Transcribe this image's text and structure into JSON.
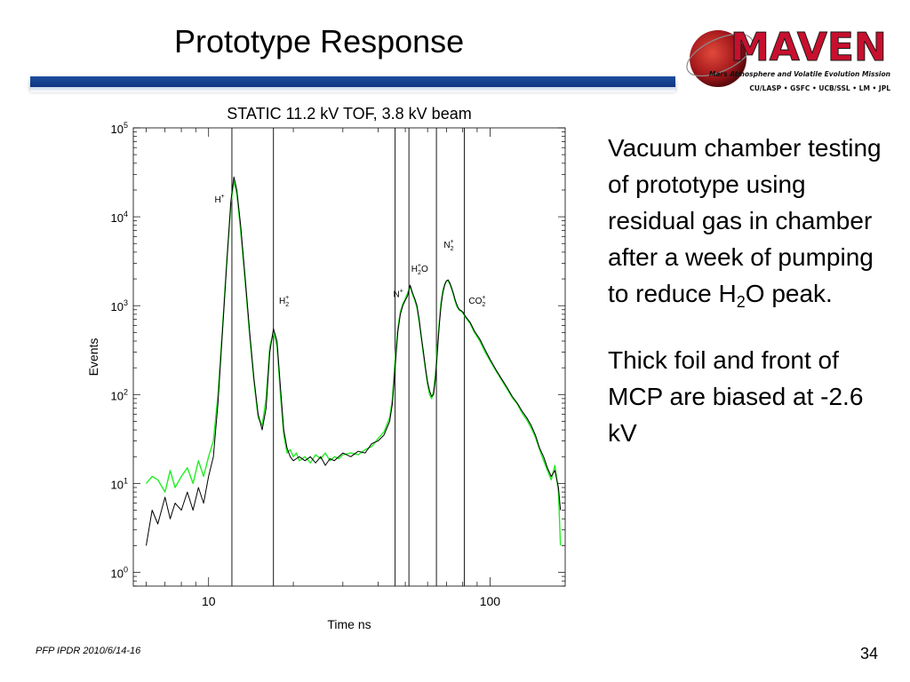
{
  "slide": {
    "title": "Prototype Response",
    "footer": "PFP IPDR 2010/6/14-16",
    "page_number": "34",
    "accent_color": "#0d3a8c"
  },
  "logo": {
    "text": "MAVEN",
    "subtitle": "Mars Atmosphere and Volatile Evolution Mission",
    "partners": "CU/LASP • GSFC • UCB/SSL • LM • JPL",
    "color": "#c8102e"
  },
  "body": {
    "paragraph1_main": "Vacuum chamber testing of prototype using residual gas in chamber after a week of pumping to reduce H",
    "paragraph1_sub": "2",
    "paragraph1_tail": "O peak.",
    "paragraph2": "Thick foil and front of MCP are biased at -2.6 kV"
  },
  "chart_data": {
    "type": "line",
    "title": "STATIC  11.2 kV TOF, 3.8 kV beam",
    "xlabel": "Time ns",
    "ylabel": "Events",
    "xscale": "log",
    "yscale": "log",
    "xlim": [
      5.4,
      185
    ],
    "ylim": [
      0.7,
      100000
    ],
    "x_ticks": [
      10,
      100
    ],
    "y_ticks": [
      {
        "value": 1,
        "label": "10",
        "exp": "0"
      },
      {
        "value": 10,
        "label": "10",
        "exp": "1"
      },
      {
        "value": 100,
        "label": "10",
        "exp": "2"
      },
      {
        "value": 1000,
        "label": "10",
        "exp": "3"
      },
      {
        "value": 10000,
        "label": "10",
        "exp": "4"
      },
      {
        "value": 100000,
        "label": "10",
        "exp": "5"
      }
    ],
    "vertical_lines": [
      12.1,
      17.0,
      46.0,
      51.5,
      64.5,
      81.0
    ],
    "peak_labels": [
      {
        "text": "H",
        "sup": "+",
        "sub": "",
        "x": 10.5,
        "y": 14500
      },
      {
        "text": "H",
        "sup": "+",
        "sub": "2",
        "x": 17.8,
        "y": 1050
      },
      {
        "text": "N",
        "sup": "+",
        "sub": "",
        "x": 45.3,
        "y": 1250
      },
      {
        "text": "H",
        "sup": "+",
        "sub": "2",
        "tail": "O",
        "x": 52.5,
        "y": 2400
      },
      {
        "text": "N",
        "sup": "+",
        "sub": "2",
        "x": 68.5,
        "y": 4500
      },
      {
        "text": "CO",
        "sup": "+",
        "sub": "2",
        "x": 84,
        "y": 1050
      }
    ],
    "series": [
      {
        "color": "#000000",
        "x": [
          6,
          6.3,
          6.6,
          7,
          7.3,
          7.6,
          8,
          8.4,
          8.8,
          9.2,
          9.6,
          10,
          10.4,
          10.8,
          11.2,
          11.6,
          12,
          12.3,
          12.6,
          13,
          13.5,
          14,
          14.5,
          15,
          15.5,
          16,
          16.5,
          17,
          17.5,
          18,
          18.5,
          19,
          19.5,
          20,
          20.5,
          21,
          22,
          23,
          24,
          25,
          26,
          27,
          28,
          29,
          30,
          32,
          34,
          36,
          38,
          40,
          42,
          44,
          45,
          46,
          47,
          48,
          49,
          50,
          51,
          52,
          53,
          54,
          55,
          56,
          57,
          58,
          59,
          60,
          61,
          62,
          63,
          64,
          65,
          66,
          67,
          68,
          69,
          70,
          71,
          72,
          73,
          74,
          75,
          76,
          77,
          78,
          79,
          80,
          82,
          85,
          88,
          92,
          96,
          100,
          105,
          110,
          115,
          120,
          125,
          130,
          135,
          140,
          145,
          150,
          155,
          160,
          165,
          170,
          175,
          178
        ],
        "y": [
          2,
          5,
          3.5,
          7,
          4,
          6,
          5,
          8,
          5,
          9,
          6,
          12,
          20,
          80,
          500,
          3000,
          15000,
          28000,
          20000,
          8000,
          2000,
          500,
          150,
          60,
          40,
          70,
          300,
          550,
          400,
          120,
          40,
          25,
          20,
          18,
          19,
          20,
          18,
          20,
          17,
          20,
          16,
          19,
          18,
          20,
          22,
          20,
          23,
          22,
          28,
          30,
          35,
          50,
          80,
          200,
          500,
          800,
          1000,
          1150,
          1300,
          1700,
          1400,
          1200,
          1000,
          700,
          450,
          300,
          200,
          140,
          110,
          95,
          100,
          150,
          300,
          600,
          1000,
          1400,
          1700,
          1900,
          1950,
          1800,
          1600,
          1400,
          1200,
          1050,
          950,
          900,
          880,
          850,
          750,
          650,
          520,
          420,
          320,
          250,
          190,
          150,
          120,
          95,
          80,
          65,
          55,
          45,
          35,
          25,
          20,
          15,
          12,
          14,
          9,
          5
        ]
      },
      {
        "color": "#22ee22",
        "x": [
          6,
          6.3,
          6.6,
          7,
          7.3,
          7.6,
          8,
          8.4,
          8.8,
          9.2,
          9.6,
          10,
          10.4,
          10.8,
          11.2,
          11.6,
          12,
          12.3,
          12.6,
          13,
          13.5,
          14,
          14.5,
          15,
          15.5,
          16,
          16.5,
          17,
          17.5,
          18,
          18.5,
          19,
          19.5,
          20,
          20.5,
          21,
          22,
          23,
          24,
          25,
          26,
          27,
          28,
          29,
          30,
          32,
          34,
          36,
          38,
          40,
          42,
          44,
          45,
          46,
          47,
          48,
          49,
          50,
          51,
          52,
          53,
          54,
          55,
          56,
          57,
          58,
          59,
          60,
          61,
          62,
          63,
          64,
          65,
          66,
          67,
          68,
          69,
          70,
          71,
          72,
          73,
          74,
          75,
          76,
          77,
          78,
          79,
          80,
          82,
          85,
          88,
          92,
          96,
          100,
          105,
          110,
          115,
          120,
          125,
          130,
          135,
          140,
          145,
          150,
          155,
          160,
          165,
          170,
          175,
          178
        ],
        "y": [
          10,
          12,
          11,
          8,
          14,
          9,
          12,
          15,
          10,
          18,
          12,
          20,
          30,
          100,
          550,
          3200,
          14000,
          25000,
          18000,
          7000,
          1800,
          450,
          140,
          55,
          45,
          90,
          350,
          500,
          350,
          100,
          35,
          22,
          24,
          20,
          22,
          18,
          20,
          17,
          21,
          19,
          22,
          18,
          20,
          19,
          21,
          22,
          21,
          24,
          26,
          32,
          38,
          55,
          90,
          250,
          550,
          850,
          1050,
          1200,
          1400,
          1650,
          1350,
          1150,
          950,
          650,
          430,
          280,
          190,
          130,
          100,
          90,
          110,
          170,
          350,
          650,
          1100,
          1500,
          1750,
          1900,
          1900,
          1750,
          1550,
          1350,
          1150,
          1000,
          930,
          880,
          870,
          830,
          730,
          630,
          500,
          400,
          300,
          240,
          185,
          145,
          115,
          92,
          78,
          62,
          52,
          42,
          33,
          24,
          18,
          14,
          11,
          16,
          8,
          2
        ]
      }
    ]
  }
}
